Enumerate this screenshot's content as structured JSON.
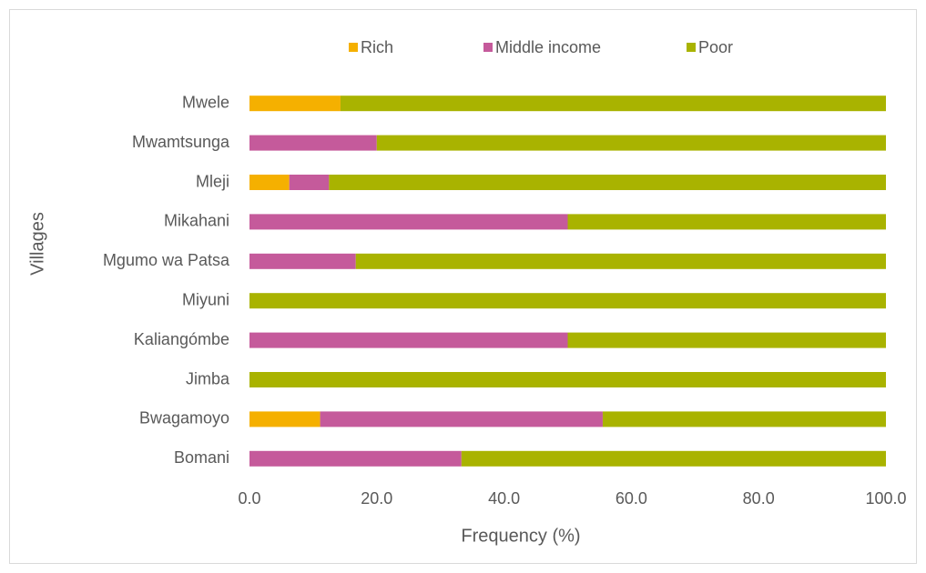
{
  "chart_data": {
    "type": "stacked-bar-horizontal",
    "categories": [
      "Mwele",
      "Mwamtsunga",
      "Mleji",
      "Mikahani",
      "Mgumo wa Patsa",
      "Miyuni",
      "Kaliangómbe",
      "Jimba",
      "Bwagamoyo",
      "Bomani"
    ],
    "series": [
      {
        "name": "Rich",
        "color": "#f5b000",
        "values": [
          14.3,
          0,
          6.25,
          0,
          0,
          0,
          0,
          0,
          11.1,
          0
        ]
      },
      {
        "name": "Middle income",
        "color": "#c55a9b",
        "values": [
          0,
          20,
          6.25,
          50,
          16.7,
          0,
          50,
          0,
          44.4,
          33.3
        ]
      },
      {
        "name": "Poor",
        "color": "#a9b300",
        "values": [
          85.7,
          80,
          87.5,
          50,
          83.3,
          100,
          50,
          100,
          44.5,
          66.7
        ]
      }
    ],
    "xlabel": "Frequency (%)",
    "ylabel": "Villages",
    "xlim": [
      0,
      100
    ],
    "xticks": [
      {
        "value": 0,
        "label": "0.0"
      },
      {
        "value": 20,
        "label": "20.0"
      },
      {
        "value": 40,
        "label": "40.0"
      },
      {
        "value": 60,
        "label": "60.0"
      },
      {
        "value": 80,
        "label": "80.0"
      },
      {
        "value": 100,
        "label": "100.0"
      }
    ],
    "legend": "top",
    "grid": false
  }
}
